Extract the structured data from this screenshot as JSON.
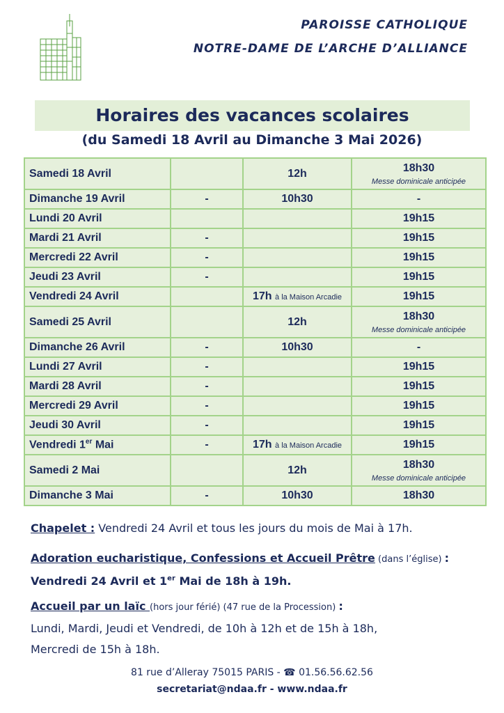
{
  "header": {
    "line1": "PAROISSE CATHOLIQUE",
    "line2": "NOTRE-DAME DE L’ARCHE D’ALLIANCE",
    "title": "Horaires des vacances scolaires",
    "subtitle": "(du Samedi 18 Avril au Dimanche 3 Mai 2026)"
  },
  "colors": {
    "text": "#1c2a5a",
    "table_bg": "#e6f0dc",
    "border": "#a3d38a",
    "logo": "#5aa043"
  },
  "schedule": [
    {
      "day": "Samedi 18 Avril",
      "c2": "",
      "c3": "12h",
      "c4": "18h30",
      "note": "Messe dominicale anticipée"
    },
    {
      "day": "Dimanche 19 Avril",
      "c2": "-",
      "c3": "10h30",
      "c4": "-"
    },
    {
      "day": "Lundi 20 Avril",
      "c2": "",
      "c3": "",
      "c4": "19h15"
    },
    {
      "day": "Mardi 21 Avril",
      "c2": "-",
      "c3": "",
      "c4": "19h15"
    },
    {
      "day": "Mercredi 22 Avril",
      "c2": "-",
      "c3": "",
      "c4": "19h15"
    },
    {
      "day": "Jeudi 23 Avril",
      "c2": "-",
      "c3": "",
      "c4": "19h15"
    },
    {
      "day": "Vendredi 24 Avril",
      "c2": "",
      "c3": "17h",
      "c3_note": "à la Maison Arcadie",
      "c4": "19h15"
    },
    {
      "day": "Samedi 25 Avril",
      "c2": "",
      "c3": "12h",
      "c4": "18h30",
      "note": "Messe dominicale anticipée"
    },
    {
      "day": "Dimanche 26 Avril",
      "c2": "-",
      "c3": "10h30",
      "c4": "-"
    },
    {
      "day": "Lundi 27 Avril",
      "c2": "-",
      "c3": "",
      "c4": "19h15"
    },
    {
      "day": "Mardi 28 Avril",
      "c2": "-",
      "c3": "",
      "c4": "19h15"
    },
    {
      "day": "Mercredi 29 Avril",
      "c2": "-",
      "c3": "",
      "c4": "19h15"
    },
    {
      "day": "Jeudi 30 Avril",
      "c2": "-",
      "c3": "",
      "c4": "19h15"
    },
    {
      "day": "Vendredi 1",
      "day_sup": "er",
      "day_end": " Mai",
      "c2": "-",
      "c3": "17h",
      "c3_note": "à la Maison Arcadie",
      "c4": "19h15"
    },
    {
      "day": "Samedi 2 Mai",
      "c2": "",
      "c3": "12h",
      "c4": "18h30",
      "note": "Messe dominicale anticipée"
    },
    {
      "day": "Dimanche 3 Mai",
      "c2": "-",
      "c3": "10h30",
      "c4": "18h30"
    }
  ],
  "info": {
    "chapelet_label": "Chapelet :",
    "chapelet_text": " Vendredi 24 Avril et tous les jours du mois de Mai à 17h.",
    "adoration_label": "Adoration eucharistique, Confessions et Accueil Prêtre",
    "adoration_place": " (dans l’église) ",
    "colon": ":",
    "adoration_when_a": "Vendredi 24 Avril et 1",
    "adoration_sup": "er",
    "adoration_when_b": " Mai de 18h à 19h.",
    "accueil_label": "Accueil par un laïc ",
    "accueil_note": "(hors jour férié) (47 rue de la Procession) ",
    "accueil_line1": "Lundi, Mardi, Jeudi et Vendredi, de 10h à 12h et de 15h à 18h,",
    "accueil_line2": "Mercredi de 15h à 18h."
  },
  "footer": {
    "address": "81 rue d’Alleray 75015 PARIS - ",
    "phone_icon": "telephone-icon",
    "phone": "01.56.56.62.56",
    "contact": "secretariat@ndaa.fr - www.ndaa.fr"
  }
}
